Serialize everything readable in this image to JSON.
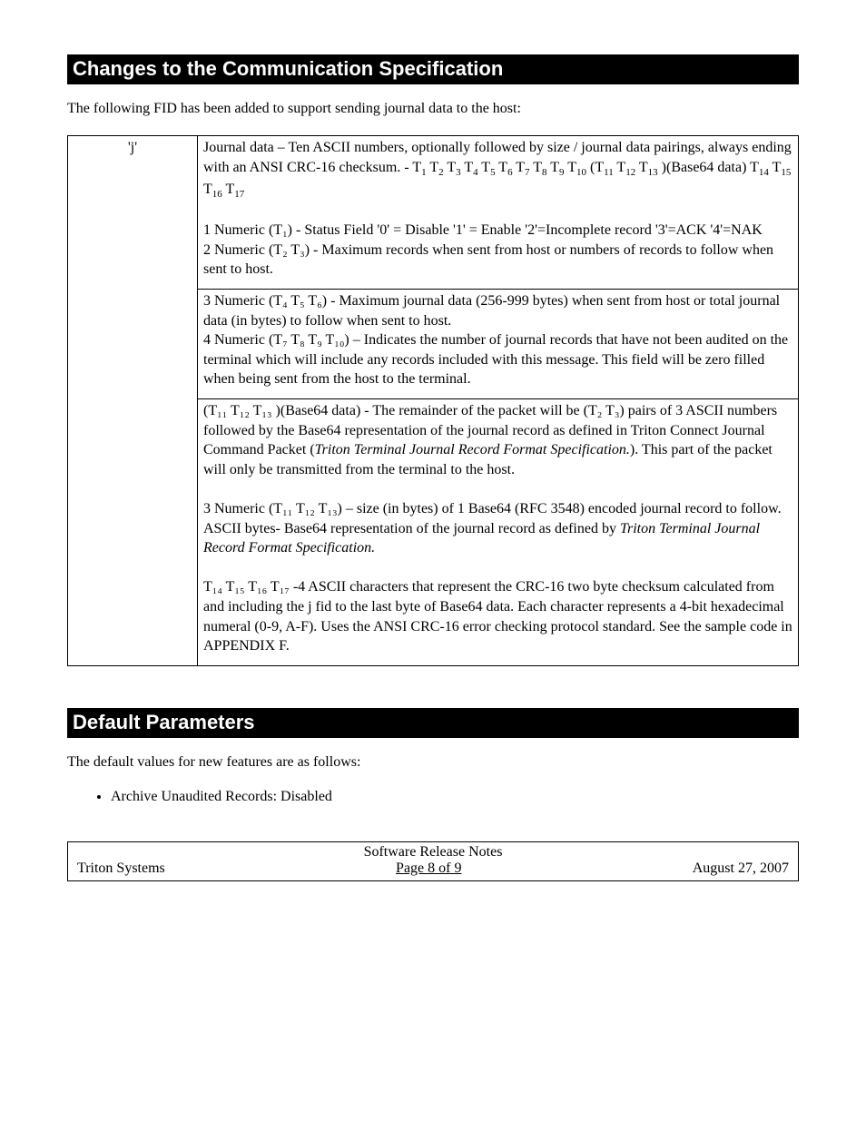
{
  "section1": {
    "title": "Changes to the Communication Specification",
    "intro": "The following FID has been added to support sending journal data to the host:"
  },
  "fid": {
    "code": "'j'",
    "row1": {
      "line1_a": "Journal data – Ten ASCII numbers, optionally followed by size / journal data pairings, always ending with an ANSI CRC-16 checksum. - T",
      "t_list1": "1 2 3 4 5 6 7 8 9 10",
      "paren_a": "(T",
      "t_list2": "11 12 13",
      "paren_b": ")(Base64 data) T",
      "t_list3": "14 15 16 17",
      "n1": "1 Numeric (T₁) - Status Field '0' = Disable '1' = Enable '2'=Incomplete record '3'=ACK '4'=NAK",
      "n2": "2 Numeric (T₂ T₃) - Maximum records when sent from host or numbers of records to follow when sent to host."
    },
    "row2": {
      "n3": "3 Numeric (T₄ T₅ T₆) - Maximum journal data (256-999 bytes) when sent from host or total journal data (in bytes) to follow when sent to host.",
      "n4": "4 Numeric (T₇ T₈ T₉ T₁₀) – Indicates the number of journal records that have not been audited on the terminal which will include any records included with this message. This field will be zero filled when being sent from the host to the terminal."
    },
    "row3": {
      "p1a": "(T₁₁ T₁₂ T₁₃ )(Base64 data) - The remainder of the packet will be (T₂ T₃) pairs of 3 ASCII numbers followed by the Base64 representation of the journal record as defined in Triton Connect Journal Command Packet (",
      "p1b_italic": "Triton Terminal Journal Record Format Specification.",
      "p1c": ").  This part of the packet will only be transmitted from the terminal to the host.",
      "p2": "3 Numeric (T₁₁ T₁₂ T₁₃) – size (in bytes) of 1 Base64 (RFC 3548) encoded journal record to follow.",
      "p3a": "ASCII bytes- Base64 representation of the journal record as defined by ",
      "p3b_italic": "Triton Terminal Journal Record Format Specification.",
      "p4": "T₁₄ T₁₅ T₁₆ T₁₇ -4 ASCII characters that represent the CRC-16 two byte checksum calculated from and including the j fid to the last byte of Base64 data.  Each character represents a 4-bit hexadecimal numeral (0-9, A-F).  Uses the ANSI CRC-16 error checking protocol standard.  See the sample code in APPENDIX F."
    }
  },
  "section2": {
    "title": "Default Parameters",
    "intro": "The default values for new features are as follows:",
    "bullet1": "Archive Unaudited Records:  Disabled"
  },
  "footer": {
    "top": "Software Release Notes",
    "left": "Triton Systems",
    "mid": "Page 8 of 9",
    "right": "August 27, 2007"
  }
}
